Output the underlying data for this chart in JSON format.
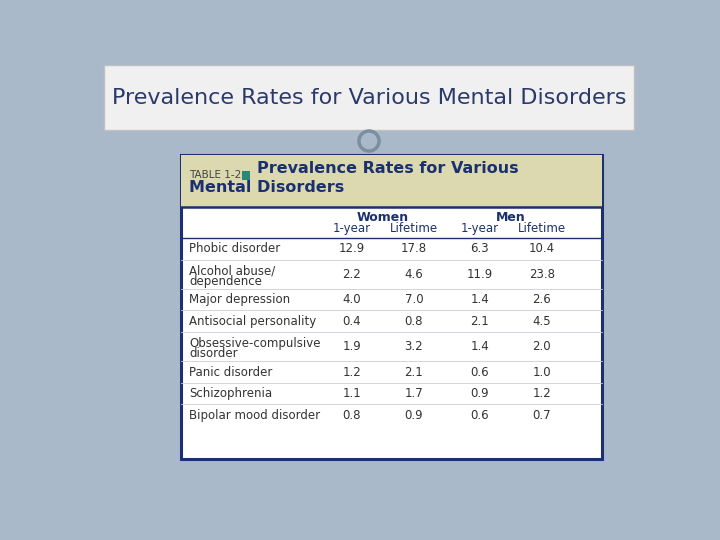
{
  "title": "Prevalence Rates for Various Mental Disorders",
  "table_label": "TABLE 1-2",
  "table_title_line1": "Prevalence Rates for Various",
  "table_title_line2": "Mental Disorders",
  "col_headers_group": [
    "Women",
    "Men"
  ],
  "col_headers_sub": [
    "1-year",
    "Lifetime",
    "1-year",
    "Lifetime"
  ],
  "rows": [
    {
      "disorder": "Phobic disorder",
      "w1": "12.9",
      "wl": "17.8",
      "m1": "6.3",
      "ml": "10.4",
      "multiline": false
    },
    {
      "disorder": "Alcohol abuse/\ndependence",
      "w1": "2.2",
      "wl": "4.6",
      "m1": "11.9",
      "ml": "23.8",
      "multiline": true
    },
    {
      "disorder": "Major depression",
      "w1": "4.0",
      "wl": "7.0",
      "m1": "1.4",
      "ml": "2.6",
      "multiline": false
    },
    {
      "disorder": "Antisocial personality",
      "w1": "0.4",
      "wl": "0.8",
      "m1": "2.1",
      "ml": "4.5",
      "multiline": false
    },
    {
      "disorder": "Obsessive-compulsive\ndisorder",
      "w1": "1.9",
      "wl": "3.2",
      "m1": "1.4",
      "ml": "2.0",
      "multiline": true
    },
    {
      "disorder": "Panic disorder",
      "w1": "1.2",
      "wl": "2.1",
      "m1": "0.6",
      "ml": "1.0",
      "multiline": false
    },
    {
      "disorder": "Schizophrenia",
      "w1": "1.1",
      "wl": "1.7",
      "m1": "0.9",
      "ml": "1.2",
      "multiline": false
    },
    {
      "disorder": "Bipolar mood disorder",
      "w1": "0.8",
      "wl": "0.9",
      "m1": "0.6",
      "ml": "0.7",
      "multiline": false
    }
  ],
  "slide_bg": "#a9b9c9",
  "title_color": "#2b3a6b",
  "title_bg": "#f0f0f0",
  "title_bar_outline": "#c0c0c0",
  "table_border_color": "#1a3070",
  "table_header_bg": "#dcd8b0",
  "table_body_bg": "#ffffff",
  "header_text_color": "#1a3070",
  "table_title_color": "#1a3070",
  "cell_text_color": "#333333",
  "square_color": "#2a8878",
  "circle_color": "#7a8fa0",
  "separator_color": "#bbbbcc",
  "row_sep_color": "#ccccdd"
}
